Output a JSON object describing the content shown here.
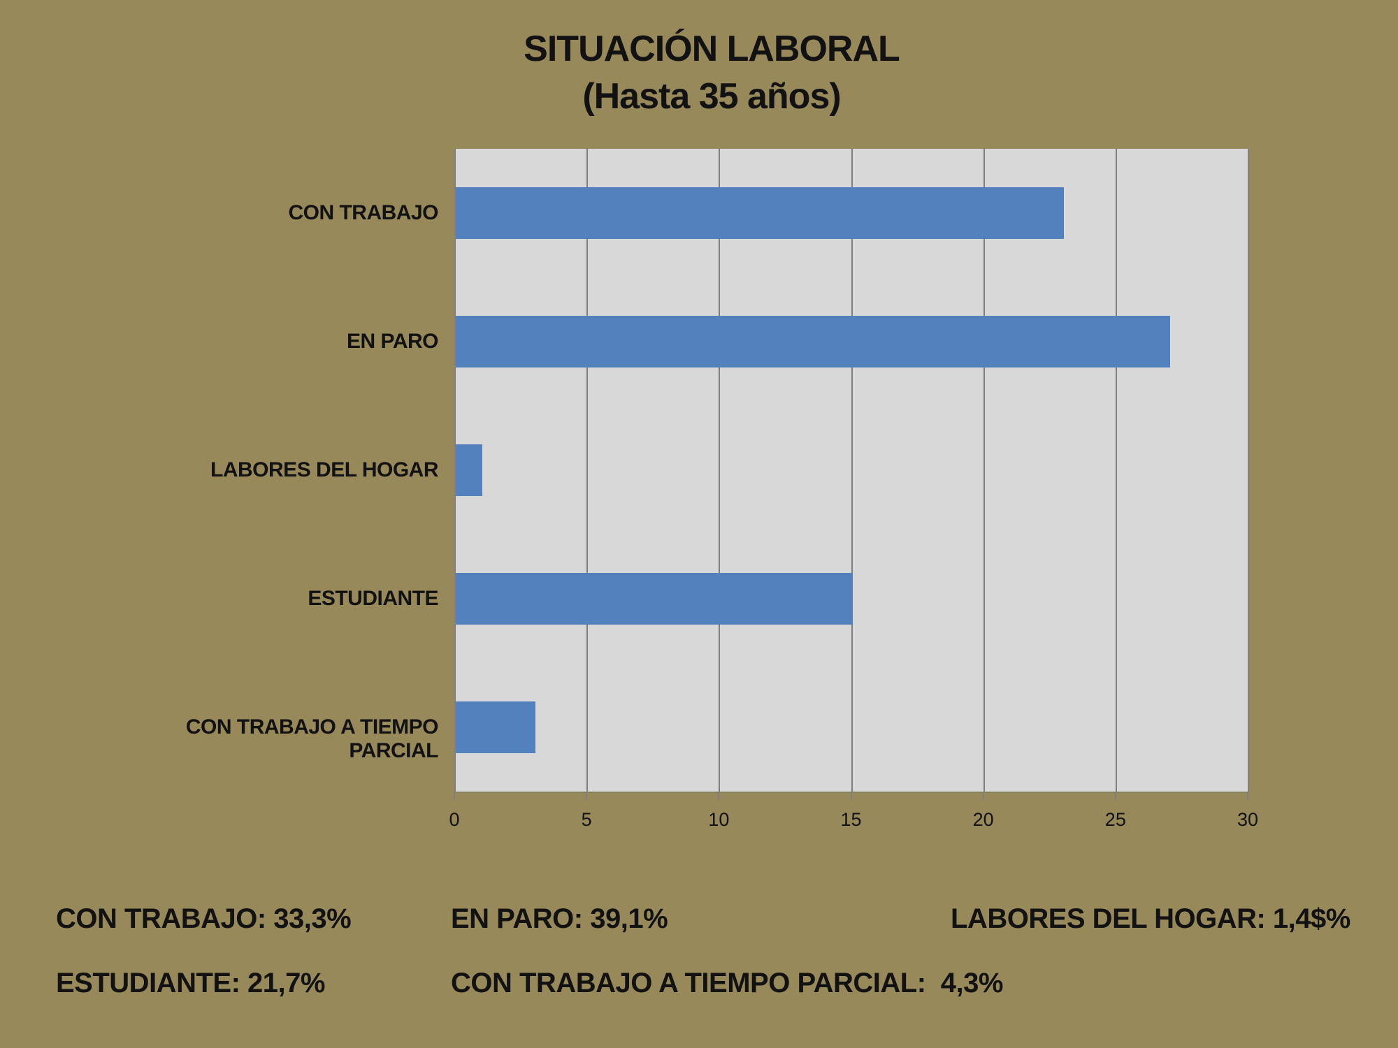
{
  "title": "SITUACIÓN LABORAL",
  "subtitle": "(Hasta 35 años)",
  "chart_data": {
    "type": "bar",
    "orientation": "horizontal",
    "title": "SITUACIÓN LABORAL (Hasta 35 años)",
    "categories": [
      "CON TRABAJO",
      "EN PARO",
      "LABORES DEL HOGAR",
      "ESTUDIANTE",
      "CON TRABAJO A TIEMPO PARCIAL"
    ],
    "values": [
      23,
      27,
      1,
      15,
      3
    ],
    "xlim": [
      0,
      30
    ],
    "xticks": [
      "0",
      "5",
      "10",
      "15",
      "20",
      "25",
      "30"
    ],
    "grid": true,
    "legend": "none",
    "bar_color": "#5281BE",
    "plot_background": "#D8D8D8",
    "gridline_color": "#7F7F7F"
  },
  "summary": {
    "items": [
      {
        "text": "CON TRABAJO: 33,3%"
      },
      {
        "text": "EN PARO: 39,1%"
      },
      {
        "text": "LABORES DEL HOGAR: 1,4$%"
      },
      {
        "text": "ESTUDIANTE: 21,7%"
      },
      {
        "text": "CON TRABAJO A TIEMPO PARCIAL:  4,3%"
      }
    ]
  },
  "colors": {
    "page_background": "#97895A",
    "bar": "#5281BE",
    "plot_background": "#D8D8D8",
    "gridline": "#7F7F7F",
    "text": "#121212"
  }
}
